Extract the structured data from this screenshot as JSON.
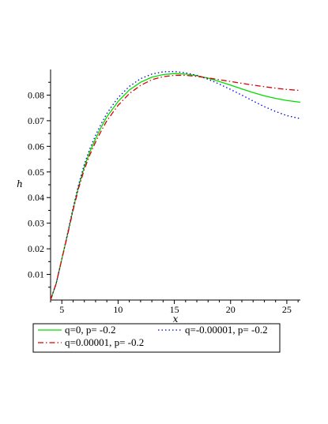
{
  "chart_data": {
    "type": "line",
    "title": "",
    "xlabel": "x",
    "ylabel": "h",
    "xlim": [
      4,
      26.2
    ],
    "ylim": [
      0,
      0.09
    ],
    "xticks": [
      5,
      10,
      15,
      20,
      25
    ],
    "yticks": [
      0.01,
      0.02,
      0.03,
      0.04,
      0.05,
      0.06,
      0.07,
      0.08
    ],
    "grid": false,
    "legend_position": "bottom",
    "series": [
      {
        "name": "q=0, p= -0.2",
        "color": "#00dd00",
        "dash": "solid",
        "x": [
          4,
          4.5,
          5,
          5.5,
          6,
          6.5,
          7,
          7.5,
          8,
          8.5,
          9,
          9.5,
          10,
          11,
          12,
          13,
          14,
          15,
          16,
          17,
          18,
          19,
          20,
          21,
          22,
          23,
          24,
          25,
          26.2
        ],
        "y": [
          0.0,
          0.0065,
          0.016,
          0.0255,
          0.0355,
          0.0445,
          0.052,
          0.058,
          0.063,
          0.0675,
          0.0715,
          0.0745,
          0.0775,
          0.082,
          0.085,
          0.087,
          0.088,
          0.0884,
          0.0882,
          0.0876,
          0.0866,
          0.0853,
          0.0839,
          0.0824,
          0.081,
          0.0797,
          0.0787,
          0.0779,
          0.0772
        ]
      },
      {
        "name": "q=-0.00001, p= -0.2",
        "color": "#0000cc",
        "dash": "dot",
        "x": [
          4,
          4.5,
          5,
          5.5,
          6,
          6.5,
          7,
          7.5,
          8,
          8.5,
          9,
          9.5,
          10,
          11,
          12,
          13,
          14,
          15,
          16,
          17,
          18,
          19,
          20,
          21,
          22,
          23,
          24,
          25,
          26.2
        ],
        "y": [
          0.0,
          0.0065,
          0.016,
          0.0258,
          0.036,
          0.0452,
          0.053,
          0.0592,
          0.0643,
          0.0688,
          0.0728,
          0.076,
          0.079,
          0.0834,
          0.0864,
          0.0882,
          0.0891,
          0.0892,
          0.0887,
          0.0877,
          0.0862,
          0.0843,
          0.0822,
          0.08,
          0.0777,
          0.0755,
          0.0736,
          0.072,
          0.0708
        ]
      },
      {
        "name": "q=0.00001, p= -0.2",
        "color": "#dd0000",
        "dash": "dashdot",
        "x": [
          4,
          4.5,
          5,
          5.5,
          6,
          6.5,
          7,
          7.5,
          8,
          8.5,
          9,
          9.5,
          10,
          11,
          12,
          13,
          14,
          15,
          16,
          17,
          18,
          19,
          20,
          21,
          22,
          23,
          24,
          25,
          26.2
        ],
        "y": [
          0.0,
          0.0065,
          0.016,
          0.0252,
          0.035,
          0.0438,
          0.051,
          0.0568,
          0.0617,
          0.066,
          0.07,
          0.073,
          0.076,
          0.0806,
          0.0838,
          0.086,
          0.0872,
          0.0877,
          0.0877,
          0.0873,
          0.0867,
          0.086,
          0.0853,
          0.0846,
          0.0839,
          0.0833,
          0.0827,
          0.0822,
          0.0818
        ]
      }
    ]
  }
}
